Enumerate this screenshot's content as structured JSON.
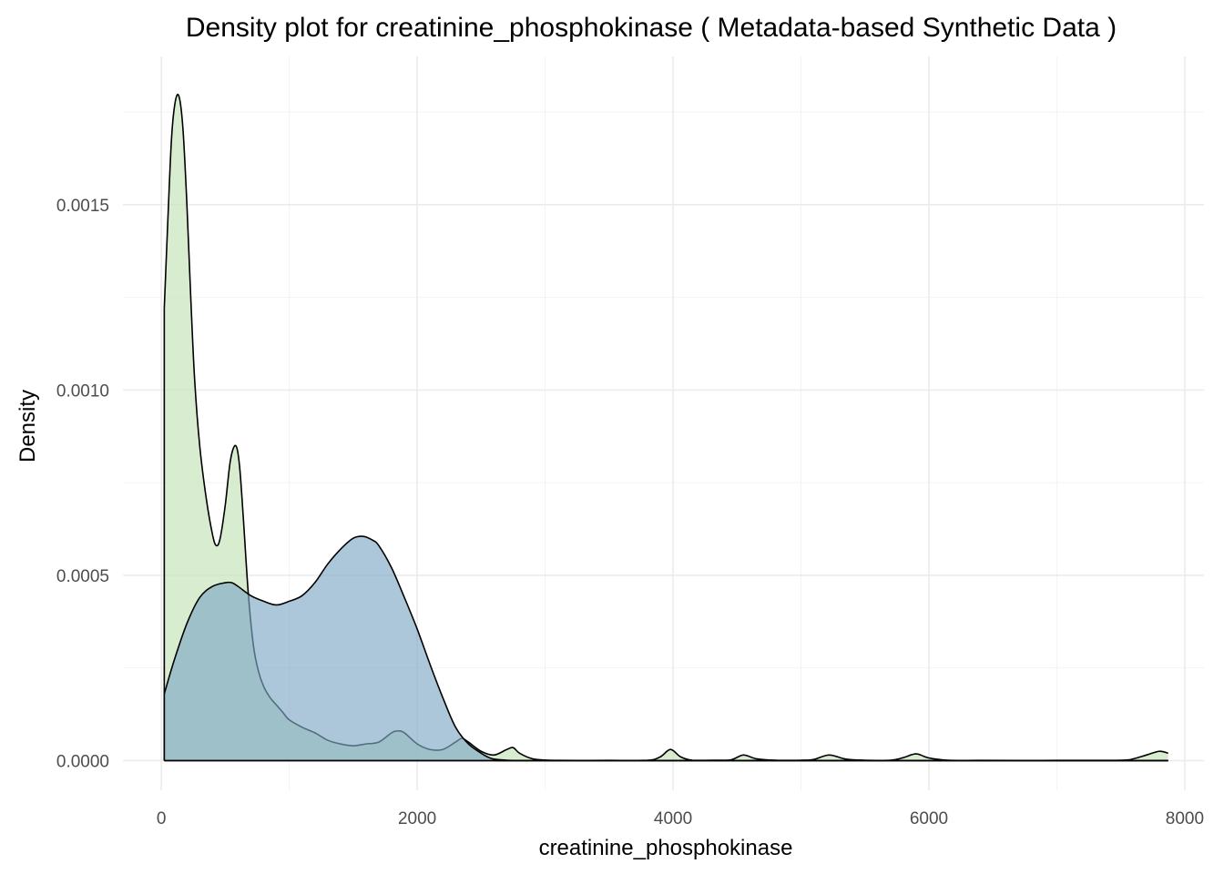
{
  "chart_data": {
    "type": "area",
    "title": "Density plot for creatinine_phosphokinase ( Metadata-based Synthetic Data )",
    "xlabel": "creatinine_phosphokinase",
    "ylabel": "Density",
    "xlim": [
      -300,
      8150
    ],
    "ylim": [
      -8e-05,
      0.0019
    ],
    "x_ticks": [
      0,
      2000,
      4000,
      6000,
      8000
    ],
    "x_tick_labels": [
      "0",
      "2000",
      "4000",
      "6000",
      "8000"
    ],
    "y_ticks": [
      0,
      0.0005,
      0.001,
      0.0015
    ],
    "y_tick_labels": [
      "0.0000",
      "0.0005",
      "0.0010",
      "0.0015"
    ],
    "grid": true,
    "series": [
      {
        "fill": "#c7e5bc",
        "opacity": 0.7,
        "x": [
          23,
          50,
          80,
          110,
          140,
          170,
          200,
          230,
          260,
          300,
          350,
          400,
          430,
          460,
          500,
          540,
          580,
          610,
          640,
          680,
          720,
          760,
          800,
          850,
          900,
          950,
          1000,
          1100,
          1200,
          1300,
          1400,
          1500,
          1600,
          1700,
          1800,
          1850,
          1900,
          2000,
          2100,
          2200,
          2300,
          2350,
          2400,
          2500,
          2600,
          2700,
          2750,
          2800,
          2900,
          3000,
          3100,
          3500,
          3800,
          3900,
          3980,
          4060,
          4150,
          4300,
          4450,
          4550,
          4650,
          4800,
          5000,
          5100,
          5220,
          5350,
          5500,
          5700,
          5800,
          5900,
          6000,
          6150,
          6400,
          7000,
          7500,
          7600,
          7700,
          7800,
          7870
        ],
        "y": [
          0.00122,
          0.00145,
          0.00168,
          0.00178,
          0.00179,
          0.0017,
          0.0015,
          0.00125,
          0.00103,
          0.00085,
          0.00071,
          0.00061,
          0.00058,
          0.0006,
          0.00069,
          0.00081,
          0.00085,
          0.0008,
          0.00066,
          0.00045,
          0.00031,
          0.00024,
          0.0002,
          0.00017,
          0.00015,
          0.00013,
          0.00011,
          9e-05,
          7.5e-05,
          5.5e-05,
          4.5e-05,
          4e-05,
          4.5e-05,
          5e-05,
          7.5e-05,
          8e-05,
          7.5e-05,
          4.5e-05,
          3e-05,
          3e-05,
          5e-05,
          6e-05,
          5e-05,
          2.5e-05,
          1.5e-05,
          3e-05,
          3.5e-05,
          2e-05,
          5e-06,
          1.5e-06,
          5e-07,
          5e-07,
          1e-06,
          1e-05,
          3e-05,
          1e-05,
          1e-06,
          1e-06,
          2e-06,
          1.5e-05,
          5e-06,
          1e-06,
          1e-06,
          3e-06,
          1.5e-05,
          4e-06,
          1e-06,
          1e-06,
          8e-06,
          1.8e-05,
          7e-06,
          1e-06,
          5e-07,
          5e-07,
          1e-06,
          5e-06,
          1.5e-05,
          2.5e-05,
          2e-05
        ]
      },
      {
        "fill": "#7fa9c4",
        "opacity": 0.65,
        "x": [
          23,
          100,
          200,
          300,
          400,
          500,
          550,
          600,
          700,
          800,
          900,
          1000,
          1100,
          1200,
          1300,
          1400,
          1500,
          1580,
          1650,
          1700,
          1800,
          1900,
          2000,
          2100,
          2200,
          2300,
          2400,
          2500,
          2550,
          2600,
          2700,
          2800,
          2900,
          3000,
          7870
        ],
        "y": [
          0.00018,
          0.00027,
          0.00037,
          0.00044,
          0.00047,
          0.00048,
          0.00048,
          0.00047,
          0.000445,
          0.00043,
          0.00042,
          0.00043,
          0.000445,
          0.00048,
          0.00053,
          0.00057,
          0.0006,
          0.000605,
          0.000595,
          0.00058,
          0.00052,
          0.00044,
          0.000355,
          0.00026,
          0.00017,
          9e-05,
          4.5e-05,
          2e-05,
          1e-05,
          4e-06,
          1e-06,
          0.0,
          0.0,
          0.0,
          0.0
        ]
      }
    ]
  }
}
